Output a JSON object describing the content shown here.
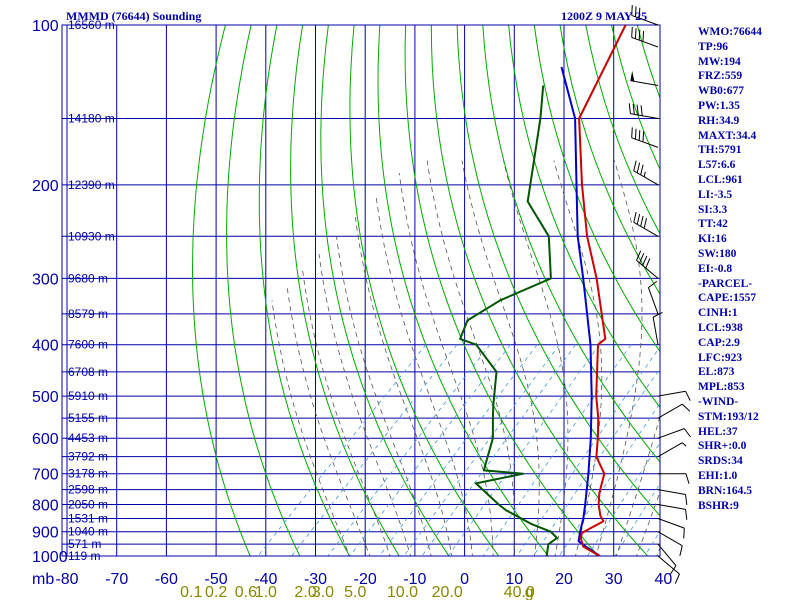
{
  "header": {
    "station_title": "MMMD (76644) Sounding",
    "time_title": "1200Z  9 MAY 25"
  },
  "indices": [
    "WMO:76644",
    "TP:96",
    "MW:194",
    "FRZ:559",
    "WB0:677",
    "PW:1.35",
    "RH:34.9",
    "MAXT:34.4",
    "TH:5791",
    "L57:6.6",
    "LCL:961",
    "LI:-3.5",
    "SI:3.3",
    "TT:42",
    "KI:16",
    "SW:180",
    "EI:-0.8",
    "-PARCEL-",
    "CAPE:1557",
    "CINH:1",
    "LCL:938",
    "CAP:2.9",
    "LFC:923",
    "EL:873",
    "MPL:853",
    "-WIND-",
    "STM:193/12",
    "HEL:37",
    "SHR+:0.0",
    "SRDS:34",
    "EHI:1.0",
    "BRN:164.5",
    "BSHR:9"
  ],
  "colors": {
    "isobar": "#0000aa",
    "isotherm": "#0000aa",
    "dry_adiabat": "#00aa00",
    "moist_adiabat": "#555555",
    "mixing_ratio": "#4499dd",
    "temperature": "#cc0000",
    "dewpoint": "#005500",
    "parcel": "#0000cc",
    "text": "#0000aa",
    "mixing_label": "#888800",
    "wind": "#000000"
  },
  "chart_data": {
    "type": "line",
    "chart_kind": "skew-T log-P sounding",
    "xlabel": "",
    "ylabel": "mb",
    "pressure_levels": [
      100,
      200,
      300,
      400,
      500,
      600,
      700,
      800,
      900,
      1000
    ],
    "temperature_ticks": [
      -80,
      -70,
      -60,
      -50,
      -40,
      -30,
      -20,
      -10,
      0,
      10,
      20,
      30,
      40
    ],
    "isotherm_range": [
      -80,
      40
    ],
    "height_labels": [
      {
        "p": 100,
        "text": "16560 m"
      },
      {
        "p": 150,
        "text": "14180 m"
      },
      {
        "p": 200,
        "text": "12390 m"
      },
      {
        "p": 250,
        "text": "10930 m"
      },
      {
        "p": 300,
        "text": "9680 m"
      },
      {
        "p": 350,
        "text": "8579 m"
      },
      {
        "p": 400,
        "text": "7600 m"
      },
      {
        "p": 450,
        "text": "6708 m"
      },
      {
        "p": 500,
        "text": "5910 m"
      },
      {
        "p": 550,
        "text": "5155 m"
      },
      {
        "p": 600,
        "text": "4453 m"
      },
      {
        "p": 650,
        "text": "3792 m"
      },
      {
        "p": 700,
        "text": "3178 m"
      },
      {
        "p": 750,
        "text": "2598 m"
      },
      {
        "p": 800,
        "text": "2050 m"
      },
      {
        "p": 850,
        "text": "1531 m"
      },
      {
        "p": 900,
        "text": "1040 m"
      },
      {
        "p": 950,
        "text": "571 m"
      },
      {
        "p": 1000,
        "text": "119 m"
      }
    ],
    "mixing_ratio_labels": [
      "0.1",
      "0.2",
      "0.6",
      "1.0",
      "2.0",
      "3.0",
      "5.0",
      "10.0",
      "20.0",
      "40.0",
      "g"
    ],
    "mixing_ratio_positions": [
      -55,
      -50,
      -44,
      -40,
      -32,
      -28.5,
      -22,
      -12.5,
      -3.5,
      11,
      13
    ],
    "series": [
      {
        "name": "",
        "role": "temperature",
        "points": [
          {
            "p": 1000,
            "t": 27.2
          },
          {
            "p": 960,
            "t": 22.0
          },
          {
            "p": 925,
            "t": 19.8
          },
          {
            "p": 905,
            "t": 19.0
          },
          {
            "p": 900,
            "t": 19.2
          },
          {
            "p": 860,
            "t": 21.0
          },
          {
            "p": 840,
            "t": 19.3
          },
          {
            "p": 800,
            "t": 16.7
          },
          {
            "p": 760,
            "t": 14.5
          },
          {
            "p": 700,
            "t": 11.7
          },
          {
            "p": 650,
            "t": 6.7
          },
          {
            "p": 600,
            "t": 3.3
          },
          {
            "p": 550,
            "t": -0.6
          },
          {
            "p": 500,
            "t": -5.4
          },
          {
            "p": 400,
            "t": -15.3
          },
          {
            "p": 390,
            "t": -15.0
          },
          {
            "p": 300,
            "t": -28.8
          },
          {
            "p": 250,
            "t": -39.1
          },
          {
            "p": 200,
            "t": -50.4
          },
          {
            "p": 150,
            "t": -64.2
          },
          {
            "p": 100,
            "t": -73.5
          }
        ]
      },
      {
        "name": "",
        "role": "dewpoint",
        "points": [
          {
            "p": 1000,
            "t": 16.5
          },
          {
            "p": 950,
            "t": 14.5
          },
          {
            "p": 925,
            "t": 15.0
          },
          {
            "p": 900,
            "t": 12.5
          },
          {
            "p": 870,
            "t": 7.0
          },
          {
            "p": 820,
            "t": -0.8
          },
          {
            "p": 800,
            "t": -3.4
          },
          {
            "p": 730,
            "t": -12.2
          },
          {
            "p": 700,
            "t": -4.6
          },
          {
            "p": 690,
            "t": -13.2
          },
          {
            "p": 600,
            "t": -17.8
          },
          {
            "p": 550,
            "t": -21.8
          },
          {
            "p": 520,
            "t": -24.3
          },
          {
            "p": 450,
            "t": -30.3
          },
          {
            "p": 400,
            "t": -39.8
          },
          {
            "p": 390,
            "t": -44.2
          },
          {
            "p": 360,
            "t": -46.4
          },
          {
            "p": 330,
            "t": -43.8
          },
          {
            "p": 300,
            "t": -38.0
          },
          {
            "p": 250,
            "t": -46.8
          },
          {
            "p": 215,
            "t": -58.0
          },
          {
            "p": 150,
            "t": -72.0
          },
          {
            "p": 130,
            "t": -78.0
          }
        ]
      },
      {
        "name": "",
        "role": "parcel",
        "points": [
          {
            "p": 1000,
            "t": 27.2
          },
          {
            "p": 960,
            "t": 22.5
          },
          {
            "p": 938,
            "t": 20.0
          },
          {
            "p": 900,
            "t": 18.4
          },
          {
            "p": 850,
            "t": 16.4
          },
          {
            "p": 800,
            "t": 14.0
          },
          {
            "p": 700,
            "t": 8.5
          },
          {
            "p": 600,
            "t": 1.9
          },
          {
            "p": 500,
            "t": -6.3
          },
          {
            "p": 400,
            "t": -16.8
          },
          {
            "p": 300,
            "t": -31.5
          },
          {
            "p": 250,
            "t": -41.0
          },
          {
            "p": 200,
            "t": -51.5
          },
          {
            "p": 150,
            "t": -65.0
          },
          {
            "p": 120,
            "t": -78.0
          }
        ]
      }
    ],
    "winds": [
      {
        "p": 1000,
        "dir": 130,
        "spd": 10
      },
      {
        "p": 950,
        "dir": 140,
        "spd": 10
      },
      {
        "p": 900,
        "dir": 120,
        "spd": 10
      },
      {
        "p": 850,
        "dir": 110,
        "spd": 10
      },
      {
        "p": 800,
        "dir": 100,
        "spd": 10
      },
      {
        "p": 750,
        "dir": 100,
        "spd": 10
      },
      {
        "p": 700,
        "dir": 90,
        "spd": 10
      },
      {
        "p": 650,
        "dir": 60,
        "spd": 5
      },
      {
        "p": 600,
        "dir": 70,
        "spd": 10
      },
      {
        "p": 550,
        "dir": 60,
        "spd": 10
      },
      {
        "p": 500,
        "dir": 80,
        "spd": 10
      },
      {
        "p": 400,
        "dir": 350,
        "spd": 10
      },
      {
        "p": 350,
        "dir": 340,
        "spd": 10
      },
      {
        "p": 300,
        "dir": 310,
        "spd": 40
      },
      {
        "p": 250,
        "dir": 300,
        "spd": 40
      },
      {
        "p": 200,
        "dir": 300,
        "spd": 35
      },
      {
        "p": 170,
        "dir": 290,
        "spd": 40
      },
      {
        "p": 150,
        "dir": 280,
        "spd": 40
      },
      {
        "p": 130,
        "dir": 280,
        "spd": 50
      },
      {
        "p": 110,
        "dir": 290,
        "spd": 40
      },
      {
        "p": 100,
        "dir": 290,
        "spd": 30
      }
    ],
    "grid": true,
    "legend": "none"
  }
}
